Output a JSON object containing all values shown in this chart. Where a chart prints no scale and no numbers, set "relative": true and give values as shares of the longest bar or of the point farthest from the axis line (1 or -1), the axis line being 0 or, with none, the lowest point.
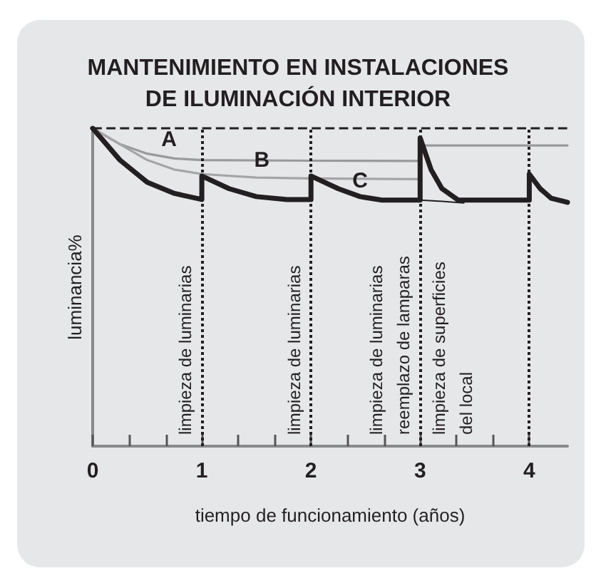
{
  "chart_data": {
    "type": "line",
    "title": "MANTENIMIENTO EN INSTALACIONES\nDE ILUMINACIÓN INTERIOR",
    "xlabel": "tiempo de funcionamiento (años)",
    "ylabel": "luminancia%",
    "relative": true,
    "xlim": [
      0,
      4.35
    ],
    "xticks": [
      {
        "value": 0,
        "label": "0"
      },
      {
        "value": 0.33,
        "label": null
      },
      {
        "value": 0.67,
        "label": null
      },
      {
        "value": 1,
        "label": "1"
      },
      {
        "value": 1.33,
        "label": null
      },
      {
        "value": 1.67,
        "label": null
      },
      {
        "value": 2,
        "label": "2"
      },
      {
        "value": 2.33,
        "label": null
      },
      {
        "value": 2.67,
        "label": null
      },
      {
        "value": 3,
        "label": "3"
      },
      {
        "value": 3.33,
        "label": null
      },
      {
        "value": 3.67,
        "label": null
      },
      {
        "value": 4,
        "label": "4"
      }
    ],
    "series": [
      {
        "name": "A",
        "color": "#9a9a9a",
        "x": [
          0,
          0.25,
          0.5,
          0.75,
          1,
          2,
          3,
          3,
          4.35
        ],
        "values": [
          1,
          0.95,
          0.92,
          0.905,
          0.9,
          0.898,
          0.897,
          0.946,
          0.946
        ]
      },
      {
        "name": "B",
        "color": "#a5a5a5",
        "x": [
          0,
          0.25,
          0.5,
          0.75,
          1,
          1.5,
          2,
          3
        ],
        "values": [
          1,
          0.95,
          0.9,
          0.87,
          0.856,
          0.845,
          0.842,
          0.84
        ]
      },
      {
        "name": "C",
        "color": "#231f20",
        "x": [
          0,
          0.25,
          0.5,
          0.75,
          1,
          1,
          1.25,
          1.5,
          1.78,
          2,
          2,
          2.25,
          2.45,
          2.65,
          3,
          3,
          3.1,
          3.2,
          3.35,
          4,
          4,
          4.1,
          4.2,
          4.35
        ],
        "values": [
          1,
          0.9,
          0.83,
          0.795,
          0.776,
          0.85,
          0.81,
          0.785,
          0.776,
          0.776,
          0.85,
          0.81,
          0.785,
          0.774,
          0.774,
          0.97,
          0.87,
          0.81,
          0.774,
          0.774,
          0.856,
          0.81,
          0.78,
          0.767
        ]
      },
      {
        "color": "#231f20",
        "x": [
          3,
          3.2,
          3.4
        ],
        "values": [
          0.774,
          0.77,
          0.765
        ]
      }
    ],
    "ref_lines": [
      {
        "axis": "y",
        "value": 1,
        "line_style": "dashed",
        "color": "#231f20"
      },
      {
        "axis": "x",
        "value": 1,
        "label": "limpieza de luminarias",
        "line_style": "dotted",
        "color": "#231f20"
      },
      {
        "axis": "x",
        "value": 2,
        "label": "limpieza de luminarias",
        "line_style": "dotted",
        "color": "#231f20"
      },
      {
        "axis": "x",
        "value": 3,
        "label": "limpieza de luminarias\nreemplazo de lamparas",
        "line_style": "dotted",
        "color": "#231f20"
      },
      {
        "axis": "x",
        "value": 4,
        "line_style": "dotted",
        "color": "#231f20"
      }
    ],
    "annotations": [
      {
        "text": "limpieza de superficies\ndel local",
        "x": 3
      }
    ],
    "legend": false,
    "grid": false,
    "marker": "none",
    "line_style": "solid"
  }
}
